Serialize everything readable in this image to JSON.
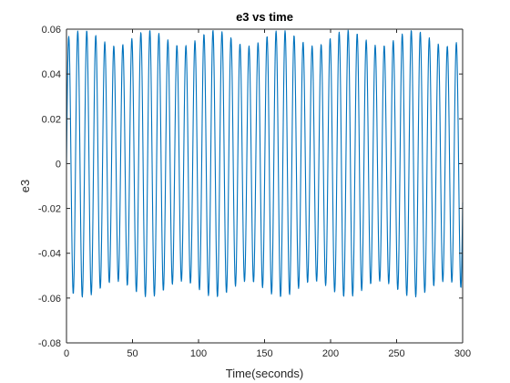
{
  "chart_data": {
    "type": "line",
    "title": "e3  vs time",
    "xlabel": "Time(seconds)",
    "ylabel": "e3",
    "xlim": [
      0,
      300
    ],
    "ylim": [
      -0.08,
      0.06
    ],
    "xticks": [
      0,
      50,
      100,
      150,
      200,
      250,
      300
    ],
    "yticks": [
      -0.08,
      -0.06,
      -0.04,
      -0.02,
      0,
      0.02,
      0.04,
      0.06
    ],
    "xtick_labels": [
      "0",
      "50",
      "100",
      "150",
      "200",
      "250",
      "300"
    ],
    "ytick_labels": [
      "-0.08",
      "-0.06",
      "-0.04",
      "-0.02",
      "0",
      "0.02",
      "0.04",
      "0.06"
    ],
    "grid": false,
    "box": true,
    "series": [
      {
        "color": "#0072BD",
        "x_start": 0,
        "x_end": 300,
        "x_step": 0.25,
        "signal": {
          "carrier_frequency_hz": 0.1465,
          "mean_amplitude": 0.0553,
          "amplitude_modulation": 0.0035,
          "modulation_frequency_hz": 0.02,
          "y_max": 0.0595,
          "y_min": -0.0598
        }
      }
    ]
  }
}
